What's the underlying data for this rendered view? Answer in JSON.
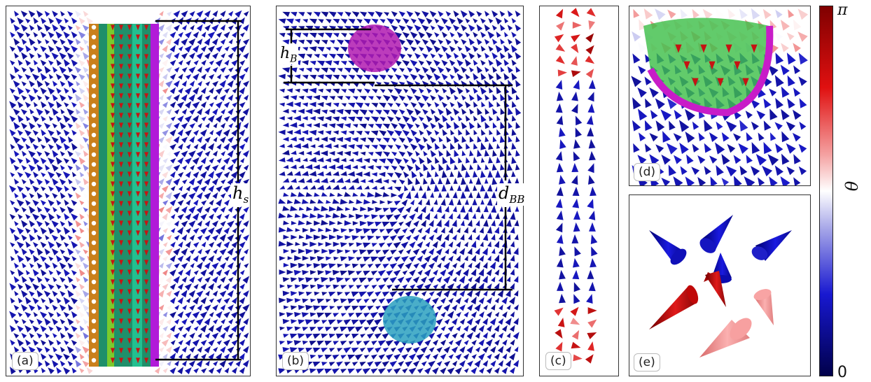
{
  "panels": [
    {
      "id": "a",
      "label": "(a)"
    },
    {
      "id": "b",
      "label": "(b)"
    },
    {
      "id": "c",
      "label": "(c)"
    },
    {
      "id": "d",
      "label": "(d)"
    },
    {
      "id": "e",
      "label": "(e)"
    }
  ],
  "annotations": {
    "hs": "h",
    "hs_sub": "s",
    "hb": "h",
    "hb_sub": "B",
    "dbb": "d",
    "dbb_sub": "BB"
  },
  "colorbar": {
    "top": "π",
    "bottom": "0",
    "symbol": "θ",
    "colors": {
      "top": "#7f0000",
      "mid": "#ffffff",
      "bottom": "#00004a"
    }
  }
}
